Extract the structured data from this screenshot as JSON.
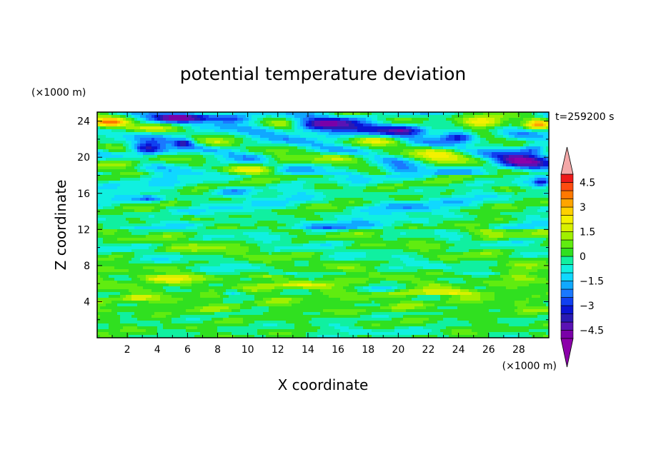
{
  "chart_data": {
    "type": "heatmap",
    "title": "potential temperature deviation",
    "xlabel": "X coordinate",
    "ylabel": "Z coordinate",
    "x_unit": "(×1000 m)",
    "y_unit": "(×1000 m)",
    "time_label": "t=259200 s",
    "xlim": [
      0,
      30
    ],
    "ylim": [
      0,
      25
    ],
    "x_ticks": [
      2,
      4,
      6,
      8,
      10,
      12,
      14,
      16,
      18,
      20,
      22,
      24,
      26,
      28
    ],
    "y_ticks": [
      4,
      8,
      12,
      16,
      20,
      24
    ],
    "grid": false,
    "colorbar": {
      "levels": [
        -5,
        -4.5,
        -4,
        -3.5,
        -3,
        -2.5,
        -2,
        -1.5,
        -1,
        -0.5,
        0,
        0.5,
        1,
        1.5,
        2,
        2.5,
        3,
        3.5,
        4,
        4.5,
        5
      ],
      "labels": [
        "4.5",
        "3",
        "1.5",
        "0",
        "−1.5",
        "−3",
        "−4.5"
      ],
      "label_values": [
        4.5,
        3,
        1.5,
        0,
        -1.5,
        -3,
        -4.5
      ],
      "colors": [
        "#7a00a8",
        "#5a12b4",
        "#2a1ab4",
        "#0a14d4",
        "#1040f0",
        "#1a78ff",
        "#10a8ff",
        "#10d8ff",
        "#10f0e0",
        "#10f0a0",
        "#30e020",
        "#60ec10",
        "#a0f000",
        "#d8f000",
        "#f4f000",
        "#ffd000",
        "#ffa400",
        "#ff7800",
        "#ff4c10",
        "#ee1a1a"
      ],
      "over_color": "#f4a8a8",
      "under_color": "#8c00aa",
      "extend": "both"
    },
    "features": [
      {
        "x": 0.8,
        "z": 23.8,
        "value": 4.0,
        "rx": 1.2,
        "rz": 0.6
      },
      {
        "x": 25.6,
        "z": 23.8,
        "value": 4.2,
        "rx": 1.6,
        "rz": 0.6
      },
      {
        "x": 29.3,
        "z": 23.6,
        "value": 2.5,
        "rx": 0.8,
        "rz": 0.7
      },
      {
        "x": 5.0,
        "z": 24.4,
        "value": -3.3,
        "rx": 2.2,
        "rz": 0.5
      },
      {
        "x": 9.0,
        "z": 24.3,
        "value": -2.8,
        "rx": 1.5,
        "rz": 0.5
      },
      {
        "x": 15.5,
        "z": 23.4,
        "value": -3.6,
        "rx": 2.8,
        "rz": 0.9
      },
      {
        "x": 12.5,
        "z": 23.6,
        "value": 1.8,
        "rx": 1.2,
        "rz": 0.6
      },
      {
        "x": 20.5,
        "z": 23.0,
        "value": -3.4,
        "rx": 1.4,
        "rz": 0.6
      },
      {
        "x": 24.0,
        "z": 22.3,
        "value": -3.2,
        "rx": 1.1,
        "rz": 0.6
      },
      {
        "x": 23.0,
        "z": 24.4,
        "value": 1.6,
        "rx": 1.8,
        "rz": 0.4
      },
      {
        "x": 3.3,
        "z": 21.0,
        "value": -3.6,
        "rx": 1.1,
        "rz": 0.7
      },
      {
        "x": 5.8,
        "z": 21.6,
        "value": -2.6,
        "rx": 0.6,
        "rz": 0.5
      },
      {
        "x": 2.5,
        "z": 23.2,
        "value": 1.6,
        "rx": 1.6,
        "rz": 0.5
      },
      {
        "x": 28.3,
        "z": 19.6,
        "value": -4.0,
        "rx": 1.8,
        "rz": 0.9
      },
      {
        "x": 29.0,
        "z": 21.0,
        "value": -2.0,
        "rx": 0.8,
        "rz": 0.5
      },
      {
        "x": 22.5,
        "z": 20.1,
        "value": 2.4,
        "rx": 1.8,
        "rz": 0.8
      },
      {
        "x": 2.0,
        "z": 19.3,
        "value": 2.1,
        "rx": 2.0,
        "rz": 0.7
      },
      {
        "x": 16.0,
        "z": 20.0,
        "value": 1.6,
        "rx": 1.8,
        "rz": 0.6
      },
      {
        "x": 10.5,
        "z": 18.6,
        "value": 1.8,
        "rx": 1.6,
        "rz": 0.5
      },
      {
        "x": 12.0,
        "z": 19.6,
        "value": 1.3,
        "rx": 1.2,
        "rz": 0.6
      },
      {
        "x": 8.0,
        "z": 21.5,
        "value": 1.2,
        "rx": 1.2,
        "rz": 0.5
      },
      {
        "x": 18.5,
        "z": 21.8,
        "value": 1.4,
        "rx": 1.6,
        "rz": 0.6
      },
      {
        "x": 20.0,
        "z": 18.5,
        "value": -2.0,
        "rx": 1.2,
        "rz": 0.5
      },
      {
        "x": 3.5,
        "z": 15.4,
        "value": -2.6,
        "rx": 1.0,
        "rz": 0.35
      },
      {
        "x": 9.0,
        "z": 16.2,
        "value": -1.5,
        "rx": 1.4,
        "rz": 0.5
      },
      {
        "x": 15.5,
        "z": 16.8,
        "value": 1.2,
        "rx": 1.8,
        "rz": 0.5
      },
      {
        "x": 27.0,
        "z": 16.5,
        "value": 1.4,
        "rx": 1.4,
        "rz": 0.5
      },
      {
        "x": 29.5,
        "z": 17.2,
        "value": -2.0,
        "rx": 0.5,
        "rz": 0.4
      },
      {
        "x": 6.5,
        "z": 13.2,
        "value": 1.2,
        "rx": 1.6,
        "rz": 0.5
      },
      {
        "x": 26.0,
        "z": 11.6,
        "value": 1.3,
        "rx": 1.6,
        "rz": 0.6
      },
      {
        "x": 15.0,
        "z": 12.4,
        "value": -1.3,
        "rx": 2.4,
        "rz": 0.6
      },
      {
        "x": 20.0,
        "z": 14.6,
        "value": -1.2,
        "rx": 2.0,
        "rz": 0.6
      },
      {
        "x": 7.0,
        "z": 9.8,
        "value": 1.0,
        "rx": 1.8,
        "rz": 0.5
      },
      {
        "x": 4.5,
        "z": 6.6,
        "value": 1.7,
        "rx": 2.0,
        "rz": 0.4
      },
      {
        "x": 23.0,
        "z": 5.0,
        "value": 2.0,
        "rx": 2.6,
        "rz": 0.3
      },
      {
        "x": 13.0,
        "z": 5.8,
        "value": 1.4,
        "rx": 2.4,
        "rz": 0.35
      },
      {
        "x": 9.0,
        "z": 5.0,
        "value": -2.0,
        "rx": 0.8,
        "rz": 0.3
      },
      {
        "x": 19.0,
        "z": 5.4,
        "value": -1.6,
        "rx": 1.2,
        "rz": 0.3
      },
      {
        "x": 2.5,
        "z": 4.4,
        "value": 1.4,
        "rx": 1.2,
        "rz": 0.3
      },
      {
        "x": 28.0,
        "z": 7.2,
        "value": 1.2,
        "rx": 1.2,
        "rz": 0.4
      },
      {
        "x": 20.0,
        "z": 0.5,
        "value": -1.0,
        "rx": 2.2,
        "rz": 0.4
      },
      {
        "x": 15.5,
        "z": 1.0,
        "value": -0.6,
        "rx": 2.6,
        "rz": 0.6
      }
    ]
  }
}
